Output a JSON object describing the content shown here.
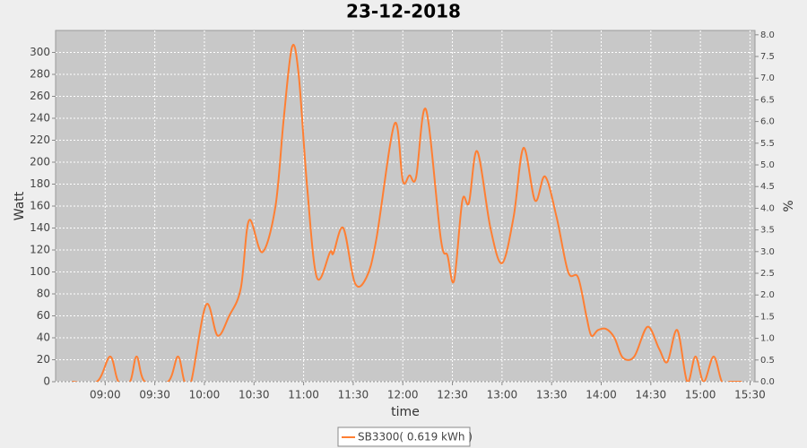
{
  "chart_data": {
    "type": "line",
    "title": "23-12-2018",
    "xlabel": "time",
    "ylabel": "Watt",
    "y2label": "%",
    "x": [
      "08:40",
      "08:55",
      "09:03",
      "09:08",
      "09:15",
      "09:19",
      "09:24",
      "09:38",
      "09:44",
      "09:48",
      "09:52",
      "10:01",
      "10:08",
      "10:15",
      "10:22",
      "10:27",
      "10:35",
      "10:43",
      "10:48",
      "10:53",
      "10:57",
      "11:02",
      "11:08",
      "11:16",
      "11:18",
      "11:24",
      "11:31",
      "11:38",
      "11:44",
      "11:55",
      "12:00",
      "12:04",
      "12:08",
      "12:14",
      "12:23",
      "12:27",
      "12:31",
      "12:36",
      "12:40",
      "12:45",
      "12:53",
      "13:00",
      "13:07",
      "13:13",
      "13:20",
      "13:26",
      "13:33",
      "13:40",
      "13:46",
      "13:51",
      "13:54",
      "13:58",
      "14:03",
      "14:08",
      "14:13",
      "14:20",
      "14:28",
      "14:35",
      "14:40",
      "14:46",
      "14:52",
      "14:57",
      "15:02",
      "15:08",
      "15:13",
      "15:18",
      "15:25"
    ],
    "series": [
      {
        "name": "SB3300( 0.619 kWh )",
        "color": "#ff7f33",
        "values": [
          0,
          0,
          23,
          0,
          0,
          23,
          0,
          0,
          23,
          0,
          0,
          70,
          42,
          60,
          85,
          147,
          118,
          160,
          240,
          305,
          280,
          180,
          95,
          118,
          117,
          140,
          90,
          95,
          130,
          235,
          183,
          188,
          186,
          248,
          130,
          115,
          92,
          165,
          163,
          210,
          140,
          108,
          150,
          213,
          165,
          187,
          150,
          100,
          95,
          60,
          42,
          47,
          48,
          40,
          22,
          23,
          50,
          30,
          18,
          47,
          0,
          23,
          0,
          23,
          0,
          0,
          0
        ]
      }
    ],
    "xlim": [
      "08:30",
      "15:33"
    ],
    "xticks": [
      "09:00",
      "09:30",
      "10:00",
      "10:30",
      "11:00",
      "11:30",
      "12:00",
      "12:30",
      "13:00",
      "13:30",
      "14:00",
      "14:30",
      "15:00",
      "15:30"
    ],
    "ylim": [
      0,
      320
    ],
    "yticks": [
      0,
      20,
      40,
      60,
      80,
      100,
      120,
      140,
      160,
      180,
      200,
      220,
      240,
      260,
      280,
      300
    ],
    "y2lim": [
      0,
      8.1
    ],
    "y2ticks": [
      {
        "value": 0,
        "label": "0.0"
      },
      0.5,
      {
        "value": 1,
        "label": "1.0"
      },
      1.5,
      {
        "value": 2,
        "label": "2.0"
      },
      2.5,
      {
        "value": 3,
        "label": "3.0"
      },
      3.5,
      {
        "value": 4,
        "label": "4.0"
      },
      4.5,
      {
        "value": 5,
        "label": "5.0"
      },
      5.5,
      {
        "value": 6,
        "label": "6.0"
      },
      6.5,
      {
        "value": 7,
        "label": "7.0"
      },
      7.5,
      {
        "value": 8,
        "label": "8.0"
      }
    ],
    "grid": true,
    "legend": "bottom"
  }
}
